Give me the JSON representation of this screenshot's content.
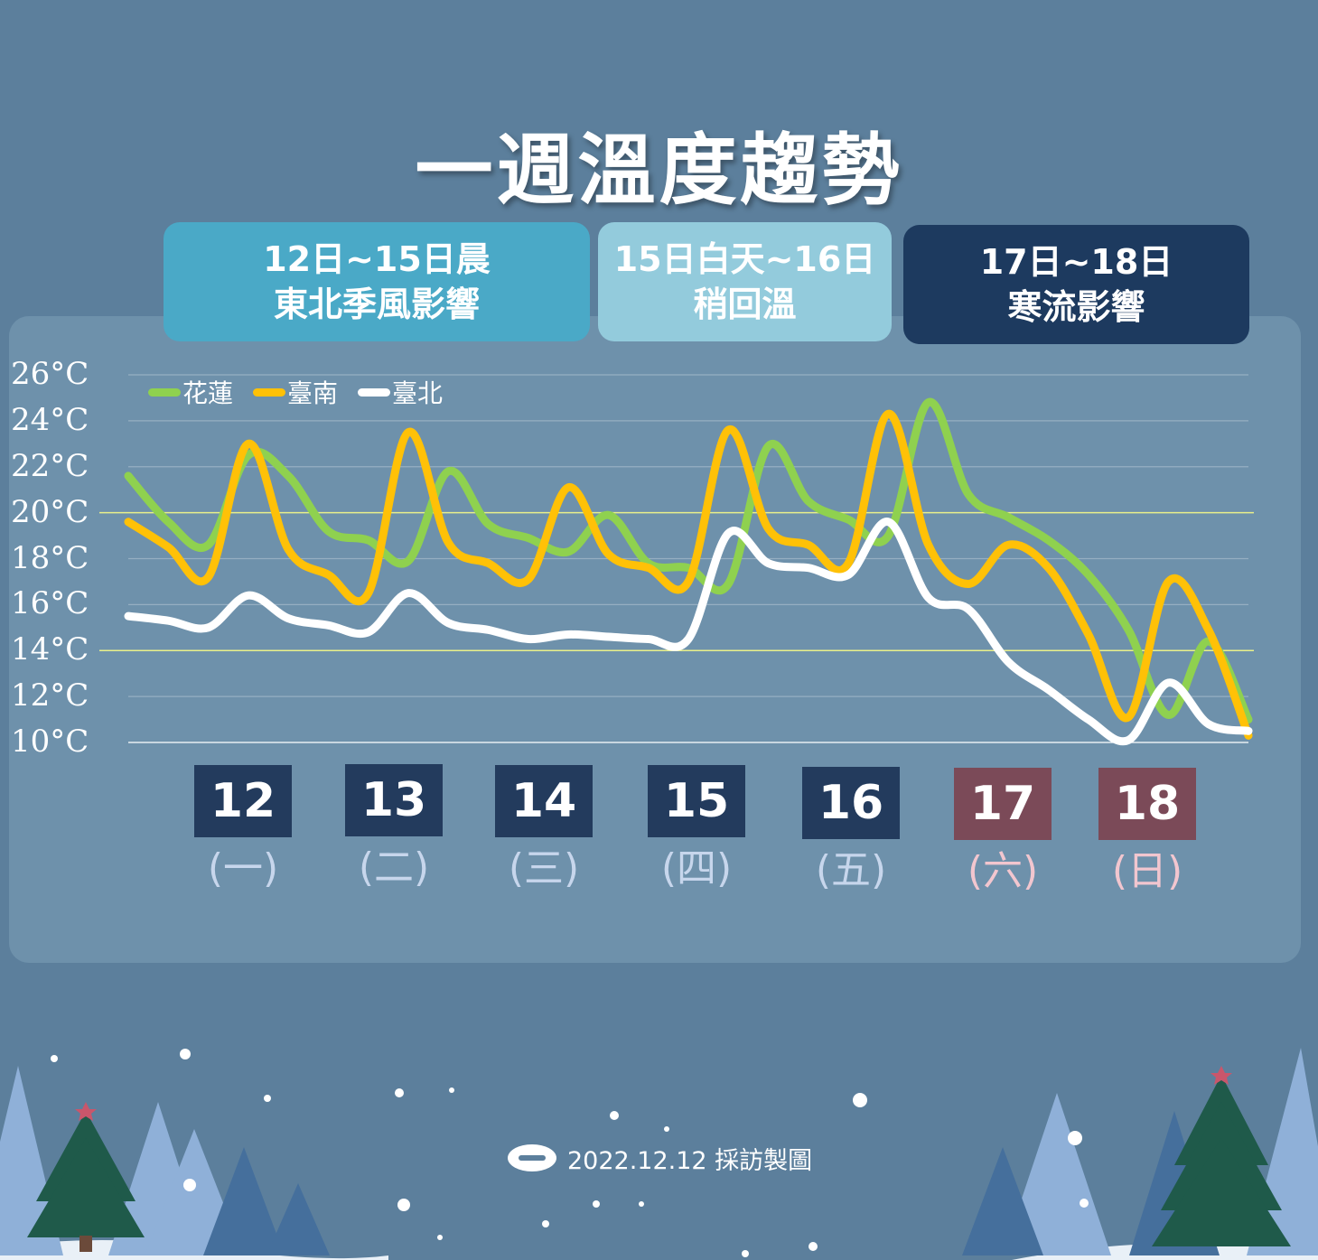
{
  "title": "一週溫度趨勢",
  "periods": [
    {
      "line1": "12日~15日晨",
      "line2": "東北季風影響"
    },
    {
      "line1": "15日白天~16日",
      "line2": "稍回溫"
    },
    {
      "line1": "17日~18日",
      "line2": "寒流影響"
    }
  ],
  "days": [
    {
      "date": "12",
      "weekday": "(一)"
    },
    {
      "date": "13",
      "weekday": "(二)"
    },
    {
      "date": "14",
      "weekday": "(三)"
    },
    {
      "date": "15",
      "weekday": "(四)"
    },
    {
      "date": "16",
      "weekday": "(五)"
    },
    {
      "date": "17",
      "weekday": "(六)"
    },
    {
      "date": "18",
      "weekday": "(日)"
    }
  ],
  "credit": "2022.12.12 採訪製圖",
  "colors": {
    "background": "#5c7f9c",
    "panel": "#6e91ab",
    "weekday_box": "#233b5d",
    "weekend_box": "#7b4a58",
    "weekday_text": "#c7d6ec",
    "weekend_text": "#f2c6cf",
    "hualien": "#8fd14f",
    "tainan": "#ffc107",
    "taipei": "#ffffff",
    "highlight_grid": "#e9f08a"
  },
  "chart_data": {
    "type": "line",
    "ylim": [
      10,
      26
    ],
    "y_ticks": [
      "26°C",
      "24°C",
      "22°C",
      "20°C",
      "18°C",
      "16°C",
      "14°C",
      "12°C",
      "10°C"
    ],
    "highlight_levels": [
      20,
      14
    ],
    "legend": [
      "花蓮",
      "臺南",
      "臺北"
    ],
    "categories": [
      "12(一)",
      "13(二)",
      "14(三)",
      "15(四)",
      "16(五)",
      "17(六)",
      "18(日)"
    ],
    "x": [
      0,
      0.25,
      0.5,
      0.75,
      1,
      1.25,
      1.5,
      1.75,
      2,
      2.25,
      2.5,
      2.75,
      3,
      3.25,
      3.5,
      3.75,
      4,
      4.25,
      4.5,
      4.75,
      5,
      5.25,
      5.5,
      5.75,
      6,
      6.25,
      6.5,
      6.75,
      7
    ],
    "series": [
      {
        "name": "花蓮",
        "values": [
          21.6,
          19.6,
          18.6,
          22.5,
          21.6,
          19.2,
          18.8,
          17.9,
          21.8,
          19.5,
          18.9,
          18.3,
          19.9,
          17.8,
          17.6,
          16.9,
          22.9,
          20.5,
          19.7,
          19.0,
          24.8,
          20.8,
          19.8,
          18.8,
          17.3,
          14.9,
          11.2,
          14.4,
          11.0
        ]
      },
      {
        "name": "臺南",
        "values": [
          19.6,
          18.5,
          17.2,
          23.0,
          18.4,
          17.3,
          16.5,
          23.5,
          18.7,
          17.8,
          17.1,
          21.1,
          18.2,
          17.6,
          17.0,
          23.6,
          19.3,
          18.6,
          17.8,
          24.3,
          18.6,
          16.9,
          18.6,
          17.6,
          14.7,
          11.1,
          17.0,
          14.9,
          10.3
        ]
      },
      {
        "name": "臺北",
        "values": [
          15.5,
          15.3,
          15.0,
          16.4,
          15.4,
          15.1,
          14.8,
          16.5,
          15.2,
          14.9,
          14.5,
          14.7,
          14.6,
          14.5,
          14.5,
          19.1,
          17.8,
          17.6,
          17.3,
          19.6,
          16.3,
          15.8,
          13.5,
          12.3,
          11.0,
          10.1,
          12.6,
          10.8,
          10.5
        ]
      }
    ]
  }
}
